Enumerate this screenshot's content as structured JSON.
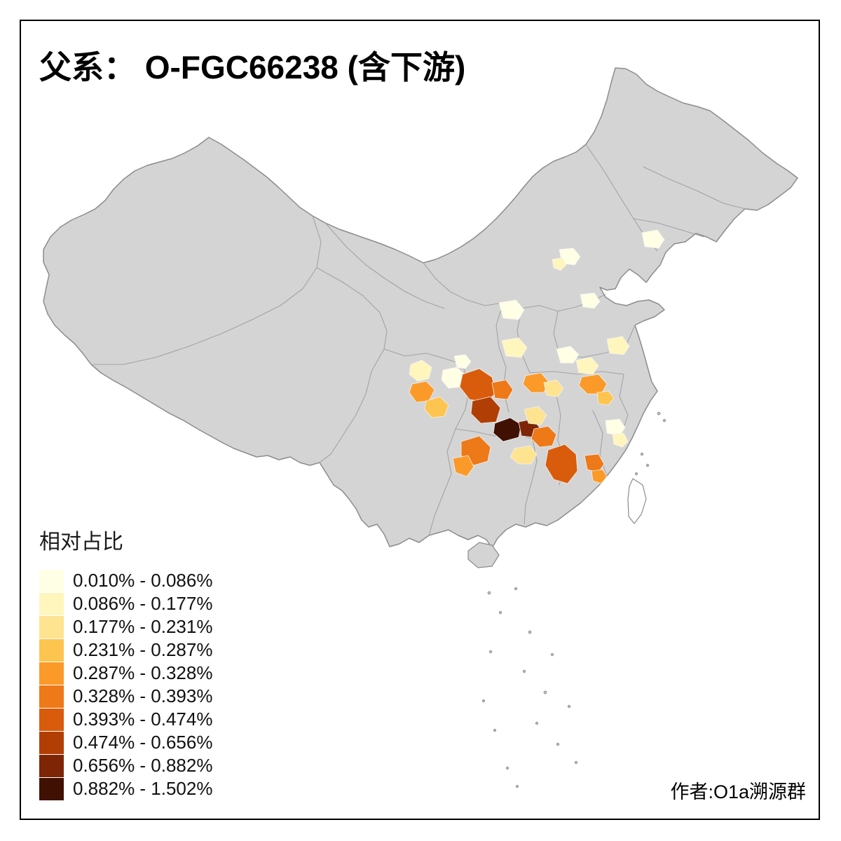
{
  "title": "父系： O-FGC66238 (含下游)",
  "credit": "作者:O1a溯源群",
  "legend": {
    "title": "相对占比",
    "classes": [
      {
        "label": "0.010% - 0.086%",
        "color": "#FFFFE5"
      },
      {
        "label": "0.086% - 0.177%",
        "color": "#FFF6BD"
      },
      {
        "label": "0.177% - 0.231%",
        "color": "#FEE391"
      },
      {
        "label": "0.231% - 0.287%",
        "color": "#FDC44F"
      },
      {
        "label": "0.287% - 0.328%",
        "color": "#FB9A29"
      },
      {
        "label": "0.328% - 0.393%",
        "color": "#EE7918"
      },
      {
        "label": "0.393% - 0.474%",
        "color": "#D85C0B"
      },
      {
        "label": "0.474% - 0.656%",
        "color": "#B13F05"
      },
      {
        "label": "0.656% - 0.882%",
        "color": "#7E2505"
      },
      {
        "label": "0.882% - 1.502%",
        "color": "#401102"
      }
    ]
  },
  "map": {
    "land_fill": "#D4D4D4",
    "land_stroke": "#8C8C8C",
    "province_stroke": "#A3A3A3",
    "island_fill": "#FFFFFF",
    "no_data_color": "#D4D4D4",
    "background": "#FFFFFF"
  },
  "chart_data": {
    "type": "choropleth",
    "title": "父系： O-FGC66238 (含下游)",
    "legend_title": "相对占比",
    "legend_position": "bottom-left",
    "unit": "percent (relative proportion)",
    "no_data_color": "#D4D4D4",
    "bins": [
      {
        "range": "0.010% - 0.086%",
        "color": "#FFFFE5"
      },
      {
        "range": "0.086% - 0.177%",
        "color": "#FFF6BD"
      },
      {
        "range": "0.177% - 0.231%",
        "color": "#FEE391"
      },
      {
        "range": "0.231% - 0.287%",
        "color": "#FDC44F"
      },
      {
        "range": "0.287% - 0.328%",
        "color": "#FB9A29"
      },
      {
        "range": "0.328% - 0.393%",
        "color": "#EE7918"
      },
      {
        "range": "0.393% - 0.474%",
        "color": "#D85C0B"
      },
      {
        "range": "0.474% - 0.656%",
        "color": "#B13F05"
      },
      {
        "range": "0.656% - 0.882%",
        "color": "#7E2505"
      },
      {
        "range": "0.882% - 1.502%",
        "color": "#401102"
      }
    ]
  }
}
